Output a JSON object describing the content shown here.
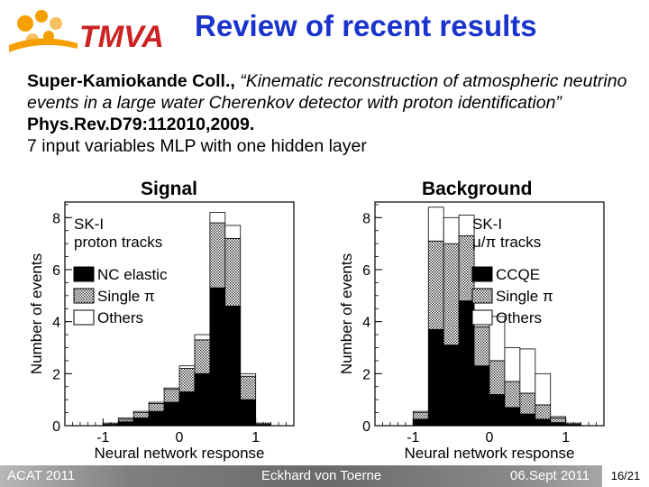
{
  "header": {
    "logo_text": "TMVA",
    "title": "Review of recent results"
  },
  "text": {
    "citation_authors": "Super-Kamiokande Coll.,",
    "citation_title": " “Kinematic reconstruction of atmospheric neutrino events in a large water Cherenkov detector with proton identification” ",
    "citation_journal": "Phys.Rev.D79:112010,2009.",
    "description": "7 input variables MLP with one hidden layer"
  },
  "labels": {
    "signal": "Signal",
    "background": "Background"
  },
  "footer": {
    "left": "ACAT 2011",
    "center": "Eckhard von Toerne",
    "right": "06.Sept 2011",
    "page": "16/21"
  },
  "colors": {
    "title": "#1a33cc",
    "logo_orange": "#f5a000",
    "logo_red": "#cc2222",
    "footer_gray": "#7f7f7f"
  },
  "chart_data": [
    {
      "type": "bar",
      "stacked": true,
      "xlabel": "Neural network response",
      "ylabel": "Number of events",
      "xlim": [
        -1.5,
        1.5
      ],
      "ylim": [
        0,
        8.6
      ],
      "xticks": [
        "-1",
        "0",
        "1"
      ],
      "yticks": [
        "0",
        "2",
        "4",
        "6",
        "8"
      ],
      "legend_title": [
        "SK-I",
        "proton tracks"
      ],
      "legend_position": "top-left",
      "bin_edges": [
        -1.0,
        -0.8,
        -0.6,
        -0.4,
        -0.2,
        0.0,
        0.2,
        0.4,
        0.6,
        0.8,
        1.0,
        1.2
      ],
      "series": [
        {
          "name": "NC elastic",
          "fill": "solid",
          "values": [
            0.05,
            0.15,
            0.3,
            0.55,
            0.9,
            1.3,
            2.0,
            5.3,
            4.6,
            1.0,
            0.05
          ]
        },
        {
          "name": "Single π",
          "fill": "hatch",
          "values": [
            0.05,
            0.1,
            0.2,
            0.3,
            0.5,
            0.9,
            1.3,
            2.5,
            2.6,
            0.9,
            0.05
          ]
        },
        {
          "name": "Others",
          "fill": "open",
          "values": [
            0.0,
            0.05,
            0.05,
            0.05,
            0.05,
            0.1,
            0.2,
            0.4,
            0.5,
            0.1,
            0.0
          ]
        }
      ]
    },
    {
      "type": "bar",
      "stacked": true,
      "xlabel": "Neural network response",
      "ylabel": "Number of events",
      "xlim": [
        -1.5,
        1.5
      ],
      "ylim": [
        0,
        8.6
      ],
      "xticks": [
        "-1",
        "0",
        "1"
      ],
      "yticks": [
        "0",
        "2",
        "4",
        "6",
        "8"
      ],
      "legend_title": [
        "SK-I",
        "μ/π tracks"
      ],
      "legend_position": "top-right",
      "bin_edges": [
        -1.0,
        -0.8,
        -0.6,
        -0.4,
        -0.2,
        0.0,
        0.2,
        0.4,
        0.6,
        0.8,
        1.0,
        1.2
      ],
      "series": [
        {
          "name": "CCQE",
          "fill": "solid",
          "values": [
            0.25,
            3.7,
            3.1,
            4.8,
            2.3,
            1.2,
            0.7,
            0.45,
            0.25,
            0.12,
            0.05
          ]
        },
        {
          "name": "Single π",
          "fill": "hatch",
          "values": [
            0.25,
            3.4,
            3.9,
            2.5,
            1.5,
            1.3,
            1.0,
            0.8,
            0.55,
            0.18,
            0.05
          ]
        },
        {
          "name": "Others",
          "fill": "open",
          "values": [
            0.05,
            1.3,
            1.0,
            0.8,
            0.5,
            1.7,
            1.3,
            1.7,
            1.2,
            0.05,
            0.0
          ]
        }
      ]
    }
  ]
}
